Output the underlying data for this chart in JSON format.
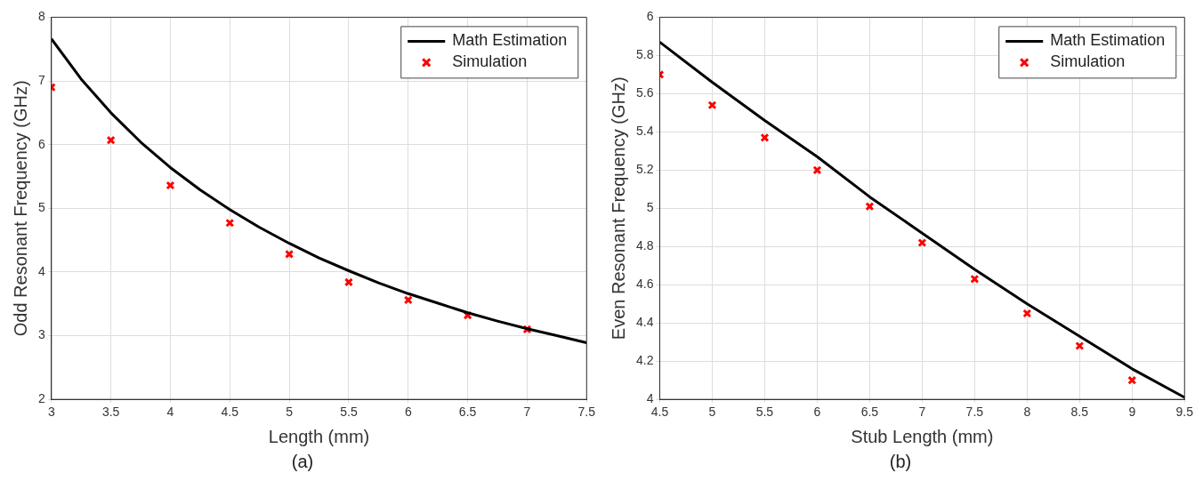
{
  "chart_data": [
    {
      "type": "line",
      "xlabel": "Length (mm)",
      "ylabel": "Odd Resonant Frequency (GHz)",
      "annotations": [
        "(a)"
      ],
      "xlim": [
        3,
        7.5
      ],
      "xticks": [
        3,
        3.5,
        4,
        4.5,
        5,
        5.5,
        6,
        6.5,
        7,
        7.5
      ],
      "ylim": [
        2,
        8
      ],
      "yticks": [
        2,
        3,
        4,
        5,
        6,
        7,
        8
      ],
      "grid": true,
      "legend": "top right",
      "series": [
        {
          "name": "Math Estimation",
          "color": "#000000",
          "marker": "none",
          "x": [
            3,
            3.25,
            3.5,
            3.75,
            4,
            4.25,
            4.5,
            4.75,
            5,
            5.25,
            5.5,
            5.75,
            6,
            6.25,
            6.5,
            6.75,
            7,
            7.25,
            7.5
          ],
          "values": [
            7.66,
            7.03,
            6.5,
            6.04,
            5.64,
            5.29,
            4.98,
            4.7,
            4.45,
            4.22,
            4.02,
            3.83,
            3.66,
            3.51,
            3.36,
            3.23,
            3.11,
            3.0,
            2.89
          ]
        },
        {
          "name": "Simulation",
          "type": "scatter",
          "color": "#ff0000",
          "marker": "cross",
          "x": [
            3,
            3.5,
            4,
            4.5,
            5,
            5.5,
            6,
            6.5,
            7
          ],
          "values": [
            6.9,
            6.07,
            5.36,
            4.77,
            4.28,
            3.84,
            3.56,
            3.32,
            3.1
          ]
        }
      ]
    },
    {
      "type": "line",
      "xlabel": "Stub Length (mm)",
      "ylabel": "Even Resonant Frequency (GHz)",
      "annotations": [
        "(b)"
      ],
      "xlim": [
        4.5,
        9.5
      ],
      "xticks": [
        4.5,
        5,
        5.5,
        6,
        6.5,
        7,
        7.5,
        8,
        8.5,
        9,
        9.5
      ],
      "ylim": [
        4,
        6
      ],
      "yticks": [
        4,
        4.2,
        4.4,
        4.6,
        4.8,
        5,
        5.2,
        5.4,
        5.6,
        5.8,
        6
      ],
      "grid": true,
      "legend": "top right",
      "series": [
        {
          "name": "Math Estimation",
          "color": "#000000",
          "marker": "none",
          "x": [
            4.5,
            5,
            5.5,
            6,
            6.5,
            7,
            7.5,
            8,
            8.5,
            9,
            9.5
          ],
          "values": [
            5.87,
            5.66,
            5.46,
            5.27,
            5.06,
            4.87,
            4.68,
            4.5,
            4.33,
            4.16,
            4.01
          ]
        },
        {
          "name": "Simulation",
          "type": "scatter",
          "color": "#ff0000",
          "marker": "cross",
          "x": [
            4.5,
            5,
            5.5,
            6,
            6.5,
            7,
            7.5,
            8,
            8.5,
            9
          ],
          "values": [
            5.7,
            5.54,
            5.37,
            5.2,
            5.01,
            4.82,
            4.63,
            4.45,
            4.28,
            4.1
          ]
        }
      ]
    }
  ]
}
